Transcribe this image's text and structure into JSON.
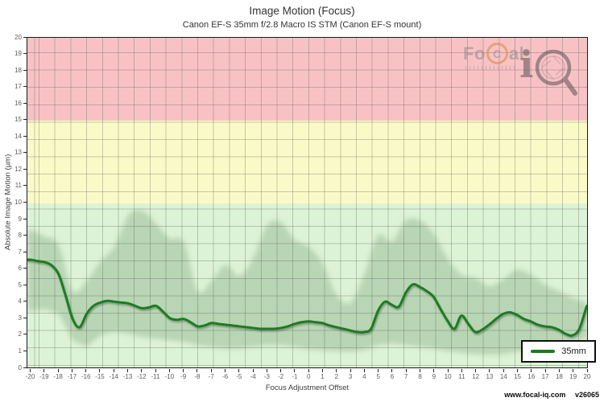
{
  "header": {
    "title": "Image Motion (Focus)",
    "subtitle": "Canon EF-S 35mm f/2.8 Macro IS STM (Canon EF-S mount)"
  },
  "logo": {
    "brand_fo": "Fo",
    "brand_c": "C",
    "brand_al": "al",
    "iq_i": "i"
  },
  "legend": {
    "series_label": "35mm"
  },
  "footer": {
    "site": "www.focal-iq.com",
    "version": "v26065"
  },
  "chart_data": {
    "type": "line",
    "title": "Image Motion (Focus)",
    "subtitle": "Canon EF-S 35mm f/2.8 Macro IS STM (Canon EF-S mount)",
    "xlabel": "Focus Adjustment Offset",
    "ylabel": "Absolute Image Motion (µm)",
    "xlim": [
      -20,
      20
    ],
    "ylim": [
      0,
      20
    ],
    "grid": true,
    "legend_position": "bottom-right",
    "x_ticks": [
      -20,
      -19,
      -18,
      -17,
      -16,
      -15,
      -14,
      -13,
      -12,
      -11,
      -10,
      -9,
      -8,
      -7,
      -6,
      -5,
      -4,
      -3,
      -2,
      -1,
      0,
      1,
      2,
      3,
      4,
      5,
      6,
      7,
      8,
      9,
      10,
      11,
      12,
      13,
      14,
      15,
      16,
      17,
      18,
      19,
      20
    ],
    "y_ticks": [
      0,
      1,
      2,
      3,
      4,
      5,
      6,
      7,
      8,
      9,
      10,
      11,
      12,
      13,
      14,
      15,
      16,
      17,
      18,
      19,
      20
    ],
    "zones": [
      {
        "name": "good",
        "from": 0,
        "to": 10,
        "color": "#ddf3d6"
      },
      {
        "name": "warning",
        "from": 10,
        "to": 15,
        "color": "#fafac8"
      },
      {
        "name": "bad",
        "from": 15,
        "to": 20,
        "color": "#f8c2c5"
      }
    ],
    "series": [
      {
        "name": "35mm",
        "color": "#1e7b22",
        "x": [
          -20,
          -19.5,
          -19,
          -18.5,
          -18,
          -17.5,
          -17,
          -16.5,
          -16,
          -15.5,
          -15,
          -14.5,
          -14,
          -13.5,
          -13,
          -12.5,
          -12,
          -11.5,
          -11,
          -10.5,
          -10,
          -9.5,
          -9,
          -8.5,
          -8,
          -7.5,
          -7,
          -6.5,
          -6,
          -5.5,
          -5,
          -4.5,
          -4,
          -3.5,
          -3,
          -2.5,
          -2,
          -1.5,
          -1,
          -0.5,
          0,
          0.5,
          1,
          1.5,
          2,
          2.5,
          3,
          3.5,
          4,
          4.5,
          5,
          5.5,
          6,
          6.5,
          7,
          7.5,
          8,
          8.5,
          9,
          9.5,
          10,
          10.5,
          11,
          11.5,
          12,
          12.5,
          13,
          13.5,
          14,
          14.5,
          15,
          15.5,
          16,
          16.5,
          17,
          17.5,
          18,
          18.5,
          19,
          19.5,
          20
        ],
        "y": [
          6.5,
          6.42,
          6.35,
          6.15,
          5.6,
          4.3,
          2.9,
          2.4,
          3.2,
          3.7,
          3.9,
          4.0,
          3.95,
          3.9,
          3.85,
          3.7,
          3.55,
          3.6,
          3.7,
          3.35,
          2.95,
          2.85,
          2.9,
          2.7,
          2.45,
          2.5,
          2.65,
          2.6,
          2.55,
          2.5,
          2.45,
          2.4,
          2.35,
          2.3,
          2.3,
          2.3,
          2.35,
          2.45,
          2.6,
          2.7,
          2.75,
          2.7,
          2.65,
          2.5,
          2.4,
          2.3,
          2.2,
          2.1,
          2.1,
          2.3,
          3.4,
          3.95,
          3.75,
          3.65,
          4.5,
          5.0,
          4.85,
          4.6,
          4.25,
          3.5,
          2.8,
          2.3,
          3.1,
          2.6,
          2.1,
          2.25,
          2.55,
          2.9,
          3.2,
          3.3,
          3.15,
          2.9,
          2.75,
          2.55,
          2.45,
          2.4,
          2.25,
          2.0,
          1.9,
          2.3,
          3.6
        ]
      }
    ],
    "band": {
      "name": "confidence-band",
      "color": "rgba(110,150,105,0.32)",
      "x": [
        -20,
        -19,
        -18,
        -17,
        -16,
        -15,
        -14,
        -13,
        -12,
        -11,
        -10,
        -9,
        -8,
        -7,
        -6,
        -5,
        -4,
        -3,
        -2,
        -1,
        0,
        1,
        2,
        3,
        4,
        5,
        6,
        7,
        8,
        9,
        10,
        11,
        12,
        13,
        14,
        15,
        16,
        17,
        18,
        19,
        20
      ],
      "upper": [
        8.3,
        7.9,
        7.4,
        4.6,
        5.2,
        6.4,
        7.3,
        9.2,
        9.5,
        8.7,
        7.8,
        7.6,
        4.6,
        5.2,
        6.2,
        5.5,
        6.6,
        8.6,
        8.8,
        7.7,
        7.3,
        6.3,
        4.4,
        3.9,
        5.6,
        8.0,
        7.6,
        8.9,
        8.9,
        8.1,
        6.6,
        5.6,
        5.4,
        4.9,
        5.3,
        5.9,
        5.6,
        5.0,
        4.6,
        4.2,
        3.9
      ],
      "lower": [
        3.4,
        3.5,
        3.2,
        1.6,
        1.2,
        1.9,
        2.1,
        2.0,
        1.8,
        1.7,
        1.6,
        1.5,
        1.3,
        1.2,
        1.1,
        1.1,
        1.2,
        1.3,
        1.3,
        1.2,
        1.05,
        1.0,
        0.95,
        0.9,
        1.0,
        1.3,
        1.4,
        1.3,
        1.2,
        1.1,
        0.95,
        0.85,
        0.75,
        0.7,
        0.75,
        0.9,
        1.0,
        1.1,
        1.3,
        1.5,
        1.7
      ]
    }
  }
}
